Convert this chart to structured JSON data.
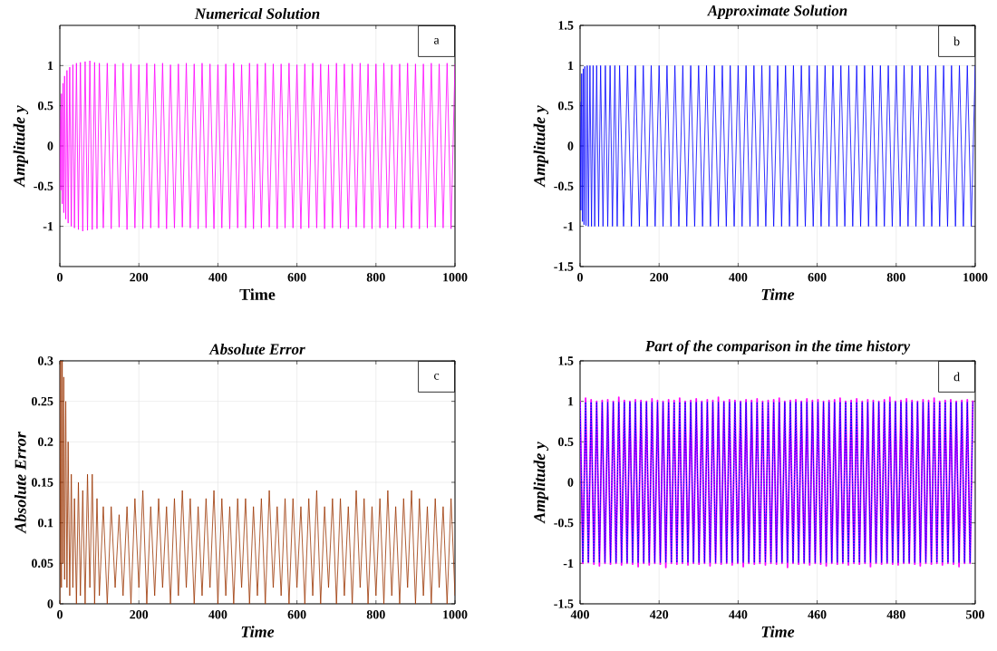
{
  "chart_data": [
    {
      "type": "line",
      "title": "Numerical Solution",
      "xlabel": "Time",
      "ylabel": "Amplitude y",
      "annotations": [
        "a"
      ],
      "grid": true,
      "xlim": [
        0,
        1000
      ],
      "ylim": [
        -1.5,
        1.5
      ],
      "xticks": [
        0,
        200,
        400,
        600,
        800,
        1000
      ],
      "yticks": [
        -1,
        -0.5,
        0,
        0.5,
        1
      ],
      "x": [
        0,
        2,
        4,
        6,
        8,
        10,
        12,
        15,
        18,
        21,
        25,
        29,
        33,
        37,
        42,
        47,
        52,
        58,
        64,
        70,
        76,
        82,
        88,
        94,
        100,
        110,
        120,
        130,
        140,
        150,
        160,
        170,
        180,
        190,
        200,
        210,
        220,
        230,
        240,
        250,
        260,
        270,
        280,
        290,
        300,
        310,
        320,
        330,
        340,
        350,
        360,
        370,
        380,
        390,
        400,
        410,
        420,
        430,
        440,
        450,
        460,
        470,
        480,
        490,
        500,
        510,
        520,
        530,
        540,
        550,
        560,
        570,
        580,
        590,
        600,
        610,
        620,
        630,
        640,
        650,
        660,
        670,
        680,
        690,
        700,
        710,
        720,
        730,
        740,
        750,
        760,
        770,
        780,
        790,
        800,
        810,
        820,
        830,
        840,
        850,
        860,
        870,
        880,
        890,
        900,
        910,
        920,
        930,
        940,
        950,
        960,
        970,
        980,
        990,
        1000
      ],
      "series": [
        {
          "color": "#ff00ff",
          "values": [
            0.45,
            -0.55,
            0.65,
            -0.72,
            0.78,
            -0.83,
            0.87,
            -0.91,
            0.94,
            -0.96,
            0.98,
            -1.0,
            1.01,
            -1.02,
            1.03,
            -1.04,
            1.04,
            -1.06,
            1.05,
            -1.05,
            1.06,
            -1.04,
            1.04,
            -1.03,
            1.03,
            -1.02,
            1.03,
            -1.03,
            1.02,
            -1.01,
            1.03,
            -1.04,
            1.02,
            -1.02,
            1.01,
            -1.03,
            1.03,
            -1.02,
            1.02,
            -1.02,
            1.03,
            -1.03,
            1.01,
            -1.02,
            1.02,
            -1.01,
            1.03,
            -1.02,
            1.02,
            -1.03,
            1.03,
            -1.02,
            1.02,
            -1.03,
            1.01,
            -1.02,
            1.02,
            -1.03,
            1.03,
            -1.02,
            1.01,
            -1.02,
            1.03,
            -1.03,
            1.02,
            -1.02,
            1.03,
            -1.01,
            1.02,
            -1.03,
            1.02,
            -1.02,
            1.03,
            -1.02,
            1.01,
            -1.03,
            1.02,
            -1.02,
            1.03,
            -1.02,
            1.02,
            -1.03,
            1.01,
            -1.02,
            1.03,
            -1.02,
            1.02,
            -1.03,
            1.02,
            -1.01,
            1.03,
            -1.02,
            1.02,
            -1.03,
            1.02,
            -1.02,
            1.03,
            -1.02,
            1.01,
            -1.03,
            1.02,
            -1.02,
            1.03,
            -1.02,
            1.02,
            -1.03,
            1.02,
            -1.02,
            1.03,
            -1.01,
            1.02,
            -1.02,
            1.03,
            -1.03,
            1.02
          ]
        }
      ]
    },
    {
      "type": "line",
      "title": "Approximate Solution",
      "xlabel": "Time",
      "ylabel": "Amplitude y",
      "annotations": [
        "b"
      ],
      "grid": true,
      "xlim": [
        0,
        1000
      ],
      "ylim": [
        -1.5,
        1.5
      ],
      "xticks": [
        0,
        200,
        400,
        600,
        800,
        1000
      ],
      "yticks": [
        -1.5,
        -1,
        -0.5,
        0,
        0.5,
        1,
        1.5
      ],
      "x": [
        0,
        2,
        4,
        6,
        8,
        10,
        12,
        15,
        18,
        21,
        25,
        29,
        33,
        37,
        42,
        47,
        52,
        58,
        64,
        70,
        76,
        82,
        88,
        94,
        100,
        110,
        120,
        130,
        140,
        150,
        160,
        170,
        180,
        190,
        200,
        210,
        220,
        230,
        240,
        250,
        260,
        270,
        280,
        290,
        300,
        310,
        320,
        330,
        340,
        350,
        360,
        370,
        380,
        390,
        400,
        410,
        420,
        430,
        440,
        450,
        460,
        470,
        480,
        490,
        500,
        510,
        520,
        530,
        540,
        550,
        560,
        570,
        580,
        590,
        600,
        610,
        620,
        630,
        640,
        650,
        660,
        670,
        680,
        690,
        700,
        710,
        720,
        730,
        740,
        750,
        760,
        770,
        780,
        790,
        800,
        810,
        820,
        830,
        840,
        850,
        860,
        870,
        880,
        890,
        900,
        910,
        920,
        930,
        940,
        950,
        960,
        970,
        980,
        990,
        1000
      ],
      "series": [
        {
          "color": "#0000ff",
          "values": [
            0.55,
            -0.8,
            0.9,
            -0.94,
            0.96,
            -0.98,
            0.99,
            -0.99,
            1,
            -1,
            1,
            -1,
            1,
            -1,
            1,
            -1,
            1,
            -1,
            1,
            -1,
            1,
            -1,
            1,
            -1,
            1,
            -1,
            1,
            -1,
            1,
            -1,
            1,
            -1,
            1,
            -1,
            1,
            -1,
            1,
            -1,
            1,
            -1,
            1,
            -1,
            1,
            -1,
            1,
            -1,
            1,
            -1,
            1,
            -1,
            1,
            -1,
            1,
            -1,
            1,
            -1,
            1,
            -1,
            1,
            -1,
            1,
            -1,
            1,
            -1,
            1,
            -1,
            1,
            -1,
            1,
            -1,
            1,
            -1,
            1,
            -1,
            1,
            -1,
            1,
            -1,
            1,
            -1,
            1,
            -1,
            1,
            -1,
            1,
            -1,
            1,
            -1,
            1,
            -1,
            1,
            -1,
            1,
            -1,
            1,
            -1,
            1,
            -1,
            1,
            -1,
            1,
            -1,
            1,
            -1,
            1,
            -1,
            1,
            -1,
            1,
            -1,
            1,
            -1,
            1,
            -1,
            1
          ]
        }
      ]
    },
    {
      "type": "line",
      "title": "Absolute Error",
      "xlabel": "Time",
      "ylabel": "Absolute Error",
      "annotations": [
        "c"
      ],
      "grid": true,
      "xlim": [
        0,
        1000
      ],
      "ylim": [
        0,
        0.3
      ],
      "xticks": [
        0,
        200,
        400,
        600,
        800,
        1000
      ],
      "yticks": [
        0,
        0.05,
        0.1,
        0.15,
        0.2,
        0.25,
        0.3
      ],
      "x": [
        0,
        2,
        4,
        6,
        8,
        10,
        12,
        15,
        18,
        21,
        25,
        29,
        33,
        37,
        42,
        47,
        52,
        58,
        64,
        70,
        76,
        82,
        88,
        94,
        100,
        110,
        120,
        130,
        140,
        150,
        160,
        170,
        180,
        190,
        200,
        210,
        220,
        230,
        240,
        250,
        260,
        270,
        280,
        290,
        300,
        310,
        320,
        330,
        340,
        350,
        360,
        370,
        380,
        390,
        400,
        410,
        420,
        430,
        440,
        450,
        460,
        470,
        480,
        490,
        500,
        510,
        520,
        530,
        540,
        550,
        560,
        570,
        580,
        590,
        600,
        610,
        620,
        630,
        640,
        650,
        660,
        670,
        680,
        690,
        700,
        710,
        720,
        730,
        740,
        750,
        760,
        770,
        780,
        790,
        800,
        810,
        820,
        830,
        840,
        850,
        860,
        870,
        880,
        890,
        900,
        910,
        920,
        930,
        940,
        950,
        960,
        970,
        980,
        990,
        1000
      ],
      "series": [
        {
          "color": "#9a3300",
          "values": [
            0,
            0.3,
            0.02,
            0.3,
            0.05,
            0.28,
            0.03,
            0.25,
            0.02,
            0.2,
            0.01,
            0.16,
            0.02,
            0.13,
            0,
            0.15,
            0.01,
            0.14,
            0,
            0.16,
            0.02,
            0.16,
            0,
            0.13,
            0.01,
            0.12,
            0,
            0.12,
            0.02,
            0.11,
            0.01,
            0.12,
            0,
            0.13,
            0.02,
            0.14,
            0,
            0.12,
            0.01,
            0.13,
            0.02,
            0.12,
            0,
            0.13,
            0.01,
            0.14,
            0.02,
            0.13,
            0,
            0.12,
            0.01,
            0.13,
            0.02,
            0.14,
            0,
            0.13,
            0.01,
            0.12,
            0,
            0.13,
            0.02,
            0.13,
            0,
            0.12,
            0.01,
            0.13,
            0,
            0.14,
            0.02,
            0.12,
            0.01,
            0.13,
            0,
            0.13,
            0.02,
            0.12,
            0,
            0.13,
            0.01,
            0.14,
            0,
            0.12,
            0.02,
            0.13,
            0,
            0.13,
            0.01,
            0.12,
            0,
            0.14,
            0.02,
            0.13,
            0,
            0.12,
            0.01,
            0.13,
            0,
            0.14,
            0.01,
            0.12,
            0,
            0.13,
            0.02,
            0.14,
            0,
            0.13,
            0.01,
            0.12,
            0,
            0.13,
            0.02,
            0.12,
            0,
            0.13,
            0.01
          ]
        }
      ]
    },
    {
      "type": "line",
      "title": "Part of the comparison in the time history",
      "xlabel": "Time",
      "ylabel": "Amplitude y",
      "annotations": [
        "d"
      ],
      "grid": true,
      "xlim": [
        400,
        500
      ],
      "ylim": [
        -1.5,
        1.5
      ],
      "xticks": [
        400,
        420,
        440,
        460,
        480,
        500
      ],
      "yticks": [
        -1.5,
        -1,
        -0.5,
        0,
        0.5,
        1,
        1.5
      ],
      "x": [
        400,
        400.7,
        401.4,
        402.1,
        402.8,
        403.5,
        404.2,
        404.9,
        405.6,
        406.3,
        407,
        407.7,
        408.4,
        409.1,
        409.8,
        410.5,
        411.2,
        411.9,
        412.6,
        413.3,
        414,
        414.7,
        415.4,
        416.1,
        416.8,
        417.5,
        418.2,
        418.9,
        419.6,
        420.3,
        421,
        421.7,
        422.4,
        423.1,
        423.8,
        424.5,
        425.2,
        425.9,
        426.6,
        427.3,
        428,
        428.7,
        429.4,
        430.1,
        430.8,
        431.5,
        432.2,
        432.9,
        433.6,
        434.3,
        435,
        435.7,
        436.4,
        437.1,
        437.8,
        438.5,
        439.2,
        439.9,
        440.6,
        441.3,
        442,
        442.7,
        443.4,
        444.1,
        444.8,
        445.5,
        446.2,
        446.9,
        447.6,
        448.3,
        449,
        449.7,
        450.4,
        451.1,
        451.8,
        452.5,
        453.2,
        453.9,
        454.6,
        455.3,
        456,
        456.7,
        457.4,
        458.1,
        458.8,
        459.5,
        460.2,
        460.9,
        461.6,
        462.3,
        463,
        463.7,
        464.4,
        465.1,
        465.8,
        466.5,
        467.2,
        467.9,
        468.6,
        469.3,
        470,
        470.7,
        471.4,
        472.1,
        472.8,
        473.5,
        474.2,
        474.9,
        475.6,
        476.3,
        477,
        477.7,
        478.4,
        479.1,
        479.8,
        480.5,
        481.2,
        481.9,
        482.6,
        483.3,
        484,
        484.7,
        485.4,
        486.1,
        486.8,
        487.5,
        488.2,
        488.9,
        489.6,
        490.3,
        491,
        491.7,
        492.4,
        493.1,
        493.8,
        494.5,
        495.2,
        495.9,
        496.6,
        497.3,
        498,
        498.7,
        499.4
      ],
      "series": [
        {
          "color": "#ff00ff",
          "line_style": "solid",
          "values": [
            1.01,
            -1,
            1.04,
            -0.99,
            1.02,
            -1.01,
            1,
            -1.03,
            1.01,
            -1,
            1.02,
            -1.01,
            1,
            -1,
            1.05,
            -1.02,
            1.01,
            -1,
            1,
            -1.01,
            1.02,
            -1.04,
            1.01,
            -1,
            1,
            -1.02,
            1.03,
            -1,
            1.01,
            -1.01,
            1,
            -1.05,
            1.02,
            -1,
            1.01,
            -1.01,
            1.04,
            -1,
            1,
            -1.02,
            1.01,
            -1,
            1.03,
            -1.01,
            1,
            -1,
            1.02,
            -1.03,
            1.01,
            -1,
            1.05,
            -1.01,
            1,
            -1,
            1.02,
            -1.02,
            1.01,
            -1,
            1,
            -1.04,
            1.02,
            -1,
            1.01,
            -1.01,
            1.03,
            -1,
            1,
            -1.02,
            1.01,
            -1,
            1.02,
            -1.01,
            1.04,
            -1,
            1,
            -1.05,
            1.01,
            -1,
            1.02,
            -1.01,
            1,
            -1,
            1.03,
            -1.02,
            1.01,
            -1,
            1.02,
            -1.01,
            1,
            -1.03,
            1.01,
            -1,
            1.02,
            -1.01,
            1.04,
            -1,
            1,
            -1.02,
            1.01,
            -1,
            1.03,
            -1.01,
            1,
            -1,
            1.02,
            -1.04,
            1.01,
            -1,
            1,
            -1.01,
            1.02,
            -1,
            1.05,
            -1.01,
            1,
            -1.02,
            1.01,
            -1,
            1.03,
            -1,
            1.01,
            -1.01,
            1,
            -1.03,
            1.02,
            -1,
            1.01,
            -1.01,
            1.04,
            -1,
            1,
            -1.02,
            1.01,
            -1,
            1.02,
            -1.01,
            1,
            -1.04,
            1.01,
            -1,
            1.02,
            -1,
            1.01
          ]
        },
        {
          "color": "#0000ff",
          "line_style": "dotted",
          "values": [
            0.99,
            -0.99,
            0.99,
            -0.99,
            0.99,
            -0.99,
            0.99,
            -0.99,
            0.99,
            -0.99,
            0.99,
            -0.99,
            0.99,
            -0.99,
            0.99,
            -0.99,
            0.99,
            -0.99,
            0.99,
            -0.99,
            0.99,
            -0.99,
            0.99,
            -0.99,
            0.99,
            -0.99,
            0.99,
            -0.99,
            0.99,
            -0.99,
            0.99,
            -0.99,
            0.99,
            -0.99,
            0.99,
            -0.99,
            0.99,
            -0.99,
            0.99,
            -0.99,
            0.99,
            -0.99,
            0.99,
            -0.99,
            0.99,
            -0.99,
            0.99,
            -0.99,
            0.99,
            -0.99,
            0.99,
            -0.99,
            0.99,
            -0.99,
            0.99,
            -0.99,
            0.99,
            -0.99,
            0.99,
            -0.99,
            0.99,
            -0.99,
            0.99,
            -0.99,
            0.99,
            -0.99,
            0.99,
            -0.99,
            0.99,
            -0.99,
            0.99,
            -0.99,
            0.99,
            -0.99,
            0.99,
            -0.99,
            0.99,
            -0.99,
            0.99,
            -0.99,
            0.99,
            -0.99,
            0.99,
            -0.99,
            0.99,
            -0.99,
            0.99,
            -0.99,
            0.99,
            -0.99,
            0.99,
            -0.99,
            0.99,
            -0.99,
            0.99,
            -0.99,
            0.99,
            -0.99,
            0.99,
            -0.99,
            0.99,
            -0.99,
            0.99,
            -0.99,
            0.99,
            -0.99,
            0.99,
            -0.99,
            0.99,
            -0.99,
            0.99,
            -0.99,
            0.99,
            -0.99,
            0.99,
            -0.99,
            0.99,
            -0.99,
            0.99,
            -0.99,
            0.99,
            -0.99,
            0.99,
            -0.99,
            0.99,
            -0.99,
            0.99,
            -0.99,
            0.99,
            -0.99,
            0.99,
            -0.99,
            0.99,
            -0.99,
            0.99,
            -0.99,
            0.99,
            -0.99,
            0.99,
            -0.99,
            0.99,
            -0.99,
            0.99
          ]
        }
      ]
    }
  ]
}
